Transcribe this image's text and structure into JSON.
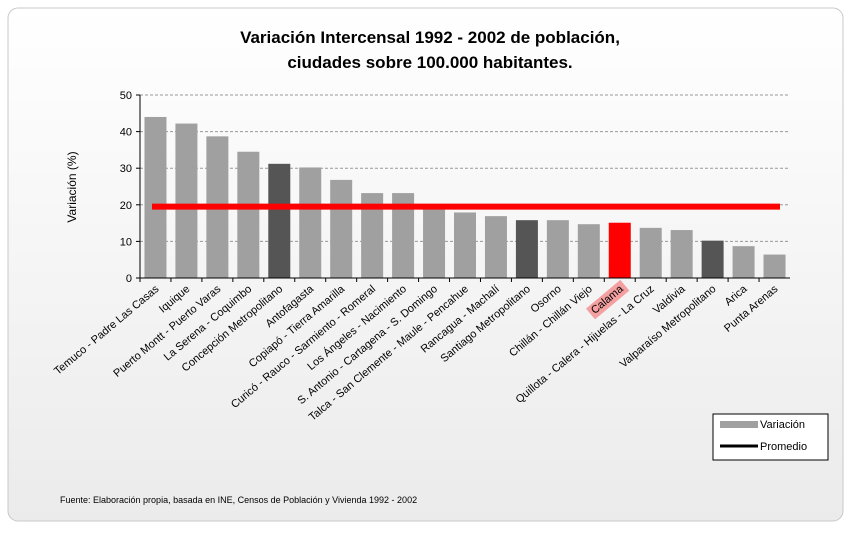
{
  "chart_data": {
    "type": "bar",
    "title": [
      "Variación Intercensal 1992 - 2002 de población,",
      "ciudades sobre 100.000 habitantes."
    ],
    "y_label": "Variación (%)",
    "source": "Fuente: Elaboración propia, basada en INE, Censos de Población y Vivienda 1992 - 2002",
    "categories": [
      "Temuco - Padre Las Casas",
      "Iquique",
      "Puerto Montt - Puerto Varas",
      "La Serena - Coquimbo",
      "Concepción Metropolitano",
      "Antofagasta",
      "Copiapó - Tierra Amarilla",
      "Curicó - Rauco - Sarmiento - Romeral",
      "Los Ángeles - Nacimiento",
      "S. Antonio - Cartagena - S. Domingo",
      "Talca - San Clemente - Maule - Pencahue",
      "Rancagua - Machalí",
      "Santiago Metropolitano",
      "Osorno",
      "Chillán - Chillán Viejo",
      "Calama",
      "Quillota - Calera - Hijuelas - La Cruz",
      "Valdivia",
      "Valparaíso Metropolitano",
      "Arica",
      "Punta Arenas"
    ],
    "series": [
      {
        "name": "Variación",
        "color": "#a0a0a0",
        "values": [
          44,
          42.2,
          38.7,
          34.5,
          31.2,
          30.2,
          26.8,
          23.2,
          23.2,
          19.5,
          17.9,
          16.9,
          15.8,
          15.8,
          14.7,
          15.1,
          13.7,
          13.1,
          10.2,
          8.7,
          6.4
        ],
        "bar_colors": [
          "#a0a0a0",
          "#a0a0a0",
          "#a0a0a0",
          "#a0a0a0",
          "#555555",
          "#a0a0a0",
          "#a0a0a0",
          "#a0a0a0",
          "#a0a0a0",
          "#a0a0a0",
          "#a0a0a0",
          "#a0a0a0",
          "#555555",
          "#a0a0a0",
          "#a0a0a0",
          "#ff0000",
          "#a0a0a0",
          "#a0a0a0",
          "#555555",
          "#a0a0a0",
          "#a0a0a0"
        ]
      }
    ],
    "average_line": {
      "name": "Promedio",
      "value": 19.5,
      "color": "#ff0000",
      "legend_color": "#000000"
    },
    "label_highlight": {
      "bar_color": "#ff0000",
      "background": "#f4a0a0"
    },
    "ylim": [
      0,
      50
    ],
    "yticks": [
      0,
      10,
      20,
      30,
      40,
      50
    ],
    "grid": true
  }
}
